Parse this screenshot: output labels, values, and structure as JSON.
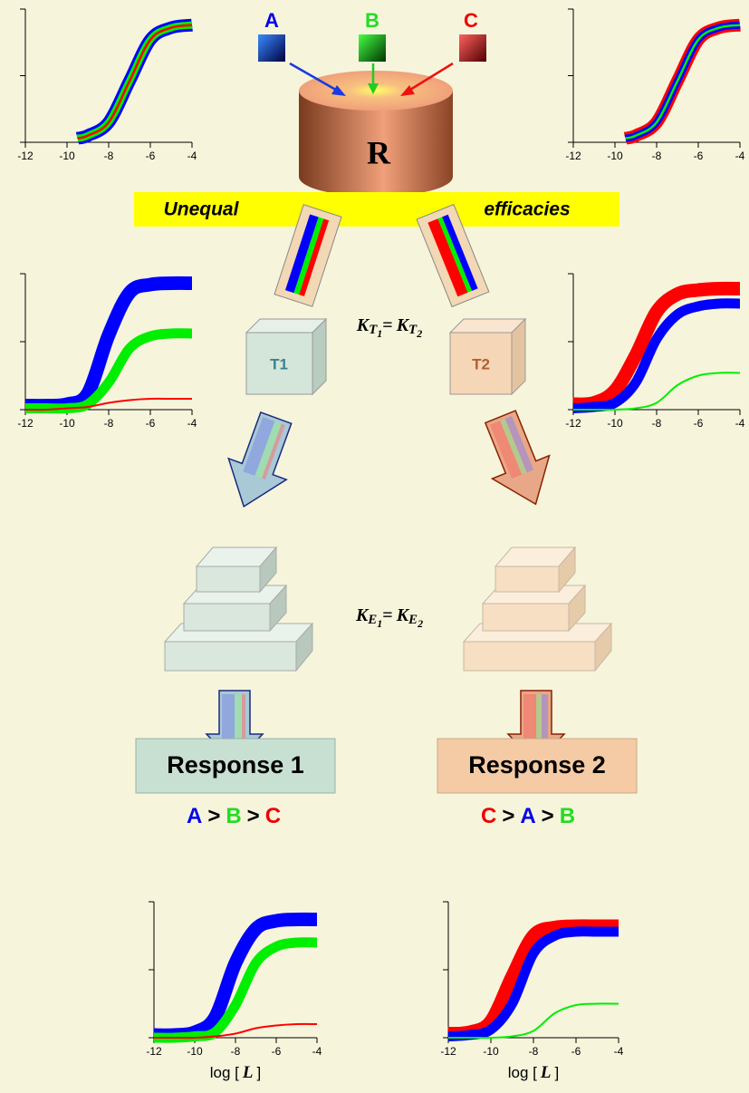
{
  "ligands": [
    "A",
    "B",
    "C"
  ],
  "receptor": "R",
  "banner": {
    "left": "Unequal",
    "right": "efficacies"
  },
  "transducers": [
    "T1",
    "T2"
  ],
  "equations": [
    {
      "left": {
        "symbol": "K",
        "sub": "T",
        "index": "1"
      },
      "sign": "=",
      "right": {
        "symbol": "K",
        "sub": "T",
        "index": "2"
      }
    },
    {
      "left": {
        "symbol": "K",
        "sub": "E",
        "index": "1"
      },
      "sign": "=",
      "right": {
        "symbol": "K",
        "sub": "E",
        "index": "2"
      }
    }
  ],
  "responses": [
    "Response 1",
    "Response 2"
  ],
  "rankings": [
    [
      {
        "text": "A",
        "color": "#0000ee"
      },
      {
        "text": ">",
        "color": "#000000"
      },
      {
        "text": "B",
        "color": "#22dd22"
      },
      {
        "text": ">",
        "color": "#000000"
      },
      {
        "text": "C",
        "color": "#ee0000"
      }
    ],
    [
      {
        "text": "C",
        "color": "#ee0000"
      },
      {
        "text": ">",
        "color": "#000000"
      },
      {
        "text": "A",
        "color": "#0000ee"
      },
      {
        "text": ">",
        "color": "#000000"
      },
      {
        "text": "B",
        "color": "#22dd22"
      }
    ]
  ],
  "charts": [
    {
      "type": "line",
      "x": [
        -9.5,
        -9,
        -8,
        -7,
        -6,
        -5,
        -4
      ],
      "xlim": [
        -12,
        -4
      ],
      "ylim": [
        0,
        100
      ],
      "xticks": [
        -12,
        -10,
        -8,
        -6,
        -4
      ],
      "yticks": [
        0,
        50,
        100
      ],
      "series": [
        {
          "color": "#0000ff",
          "values": [
            3,
            5,
            15,
            46,
            77,
            86,
            88
          ]
        },
        {
          "color": "#00ee00",
          "values": [
            3,
            5,
            15,
            46,
            77,
            86,
            88
          ]
        },
        {
          "color": "#ff0000",
          "values": [
            3,
            5,
            15,
            46,
            77,
            86,
            88
          ]
        }
      ]
    },
    {
      "type": "line",
      "x": [
        -9.5,
        -9,
        -8,
        -7,
        -6,
        -5,
        -4
      ],
      "xlim": [
        -12,
        -4
      ],
      "ylim": [
        0,
        100
      ],
      "xticks": [
        -12,
        -10,
        -8,
        -6,
        -4
      ],
      "yticks": [
        0,
        50,
        100
      ],
      "series": [
        {
          "color": "#ff0000",
          "values": [
            3,
            5,
            15,
            46,
            77,
            86,
            88
          ]
        },
        {
          "color": "#0000ff",
          "values": [
            3,
            5,
            15,
            46,
            77,
            86,
            88
          ]
        },
        {
          "color": "#00ee00",
          "values": [
            3,
            5,
            15,
            46,
            77,
            86,
            88
          ]
        }
      ]
    },
    {
      "type": "line",
      "x": [
        -12,
        -11,
        -10,
        -9,
        -8,
        -7,
        -6,
        -5,
        -4
      ],
      "xlim": [
        -12,
        -4
      ],
      "ylim": [
        0,
        100
      ],
      "xticks": [
        -12,
        -10,
        -8,
        -6,
        -4
      ],
      "yticks": [
        0,
        50,
        100
      ],
      "series": [
        {
          "color": "#0000ff",
          "values": [
            3,
            3,
            4,
            12,
            55,
            86,
            92,
            93,
            93
          ]
        },
        {
          "color": "#00ee00",
          "values": [
            1,
            1,
            1,
            4,
            20,
            45,
            54,
            56,
            56
          ]
        },
        {
          "color": "#ff0000",
          "values": [
            0,
            0,
            1,
            2,
            5,
            7,
            8,
            8,
            8
          ]
        }
      ]
    },
    {
      "type": "line",
      "x": [
        -12,
        -11,
        -10,
        -9,
        -8,
        -7,
        -6,
        -5,
        -4
      ],
      "xlim": [
        -12,
        -4
      ],
      "ylim": [
        0,
        100
      ],
      "xticks": [
        -12,
        -10,
        -8,
        -6,
        -4
      ],
      "yticks": [
        0,
        50,
        100
      ],
      "series": [
        {
          "color": "#ff0000",
          "values": [
            4,
            5,
            14,
            40,
            72,
            85,
            88,
            89,
            89
          ]
        },
        {
          "color": "#0000ff",
          "values": [
            1,
            2,
            5,
            20,
            52,
            70,
            76,
            78,
            78
          ]
        },
        {
          "color": "#00ee00",
          "values": [
            0,
            0,
            0,
            1,
            5,
            18,
            25,
            27,
            27
          ]
        }
      ]
    },
    {
      "type": "line",
      "x": [
        -12,
        -11,
        -10,
        -9,
        -8,
        -7,
        -6,
        -5,
        -4
      ],
      "xlim": [
        -12,
        -4
      ],
      "ylim": [
        0,
        100
      ],
      "xticks": [
        -12,
        -10,
        -8,
        -6,
        -4
      ],
      "yticks": [
        0,
        50,
        100
      ],
      "xlabel": [
        "log [",
        "L",
        "]"
      ],
      "series": [
        {
          "color": "#0000ff",
          "values": [
            2,
            2,
            4,
            15,
            55,
            80,
            86,
            87,
            87
          ]
        },
        {
          "color": "#00ee00",
          "values": [
            0,
            0,
            1,
            4,
            24,
            55,
            67,
            70,
            70
          ]
        },
        {
          "color": "#ff0000",
          "values": [
            0,
            0,
            0,
            1,
            3,
            7,
            9,
            10,
            10
          ]
        }
      ]
    },
    {
      "type": "line",
      "x": [
        -12,
        -11,
        -10,
        -9,
        -8,
        -7,
        -6,
        -5,
        -4
      ],
      "xlim": [
        -12,
        -4
      ],
      "ylim": [
        0,
        100
      ],
      "xticks": [
        -12,
        -10,
        -8,
        -6,
        -4
      ],
      "yticks": [
        0,
        50,
        100
      ],
      "xlabel": [
        "log [",
        "L",
        "]"
      ],
      "series": [
        {
          "color": "#ff0000",
          "values": [
            3,
            4,
            12,
            45,
            75,
            81,
            82,
            82,
            82
          ]
        },
        {
          "color": "#0000ff",
          "values": [
            1,
            2,
            6,
            25,
            62,
            75,
            78,
            78,
            78
          ]
        },
        {
          "color": "#00ee00",
          "values": [
            0,
            0,
            0,
            1,
            5,
            18,
            24,
            25,
            25
          ]
        }
      ]
    }
  ]
}
